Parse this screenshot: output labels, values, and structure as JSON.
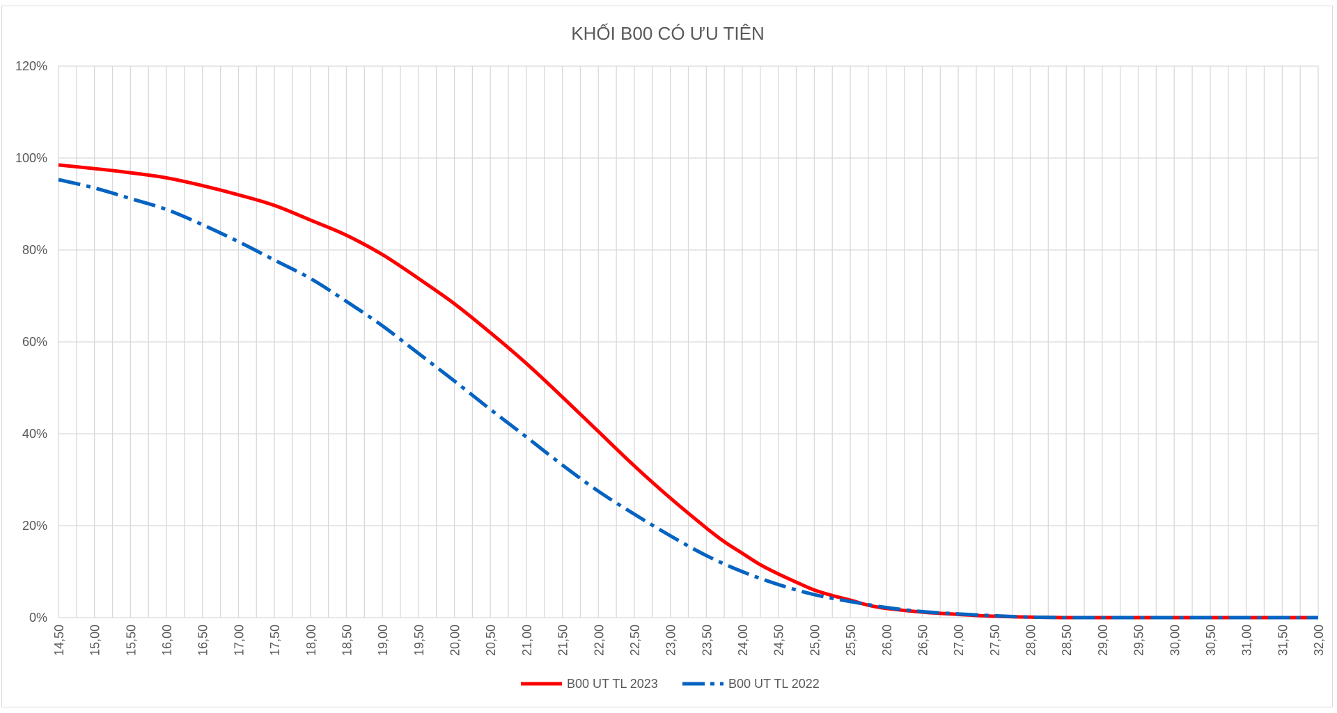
{
  "chart_data": {
    "type": "line",
    "title": "KHỐI B00 CÓ ƯU TIÊN",
    "xlabel": "",
    "ylabel": "",
    "xlim": [
      14.5,
      32.0
    ],
    "x_step": 0.25,
    "x_tick_step": 0.5,
    "ylim": [
      0,
      1.2
    ],
    "y_ticks": [
      0,
      0.2,
      0.4,
      0.6,
      0.8,
      1.0,
      1.2
    ],
    "y_tick_labels": [
      "0%",
      "20%",
      "40%",
      "60%",
      "80%",
      "100%",
      "120%"
    ],
    "x_tick_labels": [
      "14,50",
      "15,00",
      "15,50",
      "16,00",
      "16,50",
      "17,00",
      "17,50",
      "18,00",
      "18,50",
      "19,00",
      "19,50",
      "20,00",
      "20,50",
      "21,00",
      "21,50",
      "22,00",
      "22,50",
      "23,00",
      "23,50",
      "24,00",
      "24,50",
      "25,00",
      "25,50",
      "26,00",
      "26,50",
      "27,00",
      "27,50",
      "28,00",
      "28,50",
      "29,00",
      "29,50",
      "30,00",
      "30,50",
      "31,00",
      "31,50",
      "32,00"
    ],
    "grid": true,
    "legend_position": "bottom",
    "series": [
      {
        "name": "B00 UT TL 2023",
        "color": "#ff0000",
        "style": "solid",
        "points": [
          [
            14.5,
            0.985
          ],
          [
            15.0,
            0.977
          ],
          [
            15.5,
            0.968
          ],
          [
            16.0,
            0.957
          ],
          [
            16.5,
            0.94
          ],
          [
            17.0,
            0.92
          ],
          [
            17.5,
            0.897
          ],
          [
            18.0,
            0.865
          ],
          [
            18.5,
            0.832
          ],
          [
            19.0,
            0.79
          ],
          [
            19.5,
            0.738
          ],
          [
            20.0,
            0.683
          ],
          [
            20.5,
            0.62
          ],
          [
            21.0,
            0.553
          ],
          [
            21.5,
            0.48
          ],
          [
            22.0,
            0.405
          ],
          [
            22.5,
            0.33
          ],
          [
            23.0,
            0.26
          ],
          [
            23.5,
            0.195
          ],
          [
            23.75,
            0.165
          ],
          [
            24.0,
            0.14
          ],
          [
            24.25,
            0.115
          ],
          [
            24.5,
            0.095
          ],
          [
            24.75,
            0.077
          ],
          [
            25.0,
            0.06
          ],
          [
            25.25,
            0.048
          ],
          [
            25.5,
            0.038
          ],
          [
            25.75,
            0.027
          ],
          [
            26.0,
            0.02
          ],
          [
            26.5,
            0.012
          ],
          [
            27.0,
            0.007
          ],
          [
            27.5,
            0.003
          ],
          [
            28.0,
            0.001
          ],
          [
            28.5,
            0.0
          ],
          [
            29.0,
            0.0
          ],
          [
            30.0,
            0.0
          ],
          [
            31.0,
            0.0
          ],
          [
            32.0,
            0.0
          ]
        ]
      },
      {
        "name": "B00 UT TL 2022",
        "color": "#0563c1",
        "style": "dashdot",
        "points": [
          [
            14.5,
            0.953
          ],
          [
            15.0,
            0.935
          ],
          [
            15.5,
            0.912
          ],
          [
            16.0,
            0.888
          ],
          [
            16.5,
            0.855
          ],
          [
            17.0,
            0.818
          ],
          [
            17.5,
            0.778
          ],
          [
            18.0,
            0.738
          ],
          [
            18.5,
            0.688
          ],
          [
            19.0,
            0.635
          ],
          [
            19.5,
            0.575
          ],
          [
            20.0,
            0.515
          ],
          [
            20.5,
            0.453
          ],
          [
            21.0,
            0.393
          ],
          [
            21.5,
            0.332
          ],
          [
            22.0,
            0.275
          ],
          [
            22.5,
            0.225
          ],
          [
            23.0,
            0.178
          ],
          [
            23.5,
            0.135
          ],
          [
            24.0,
            0.1
          ],
          [
            24.5,
            0.072
          ],
          [
            25.0,
            0.05
          ],
          [
            25.5,
            0.035
          ],
          [
            26.0,
            0.022
          ],
          [
            26.5,
            0.013
          ],
          [
            27.0,
            0.008
          ],
          [
            27.5,
            0.004
          ],
          [
            28.0,
            0.001
          ],
          [
            28.5,
            0.0
          ],
          [
            29.0,
            0.0
          ],
          [
            30.0,
            0.0
          ],
          [
            31.0,
            0.0
          ],
          [
            32.0,
            0.0
          ]
        ]
      }
    ]
  }
}
